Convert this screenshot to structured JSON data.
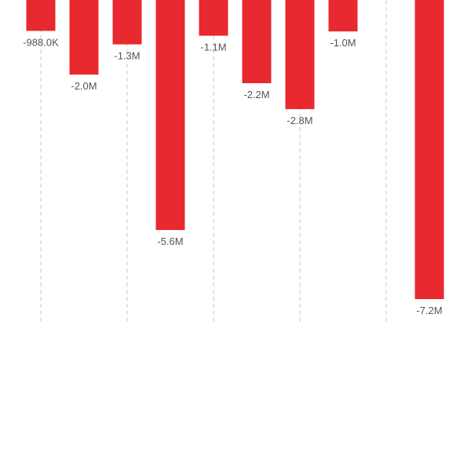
{
  "chart_data": {
    "type": "bar",
    "orientation": "vertical",
    "values": [
      -988000,
      -2000000,
      -1300000,
      -5600000,
      -1100000,
      -2200000,
      -2800000,
      -1000000,
      -7200000
    ],
    "labels": [
      "-988.0K",
      "-2.0M",
      "-1.3M",
      "-5.6M",
      "-1.1M",
      "-2.2M",
      "-2.8M",
      "-1.0M",
      "-7.2M"
    ],
    "grid": true,
    "colors": {
      "bar": "#e8292f",
      "grid": "#c9c9c9",
      "label": "#555555"
    }
  }
}
